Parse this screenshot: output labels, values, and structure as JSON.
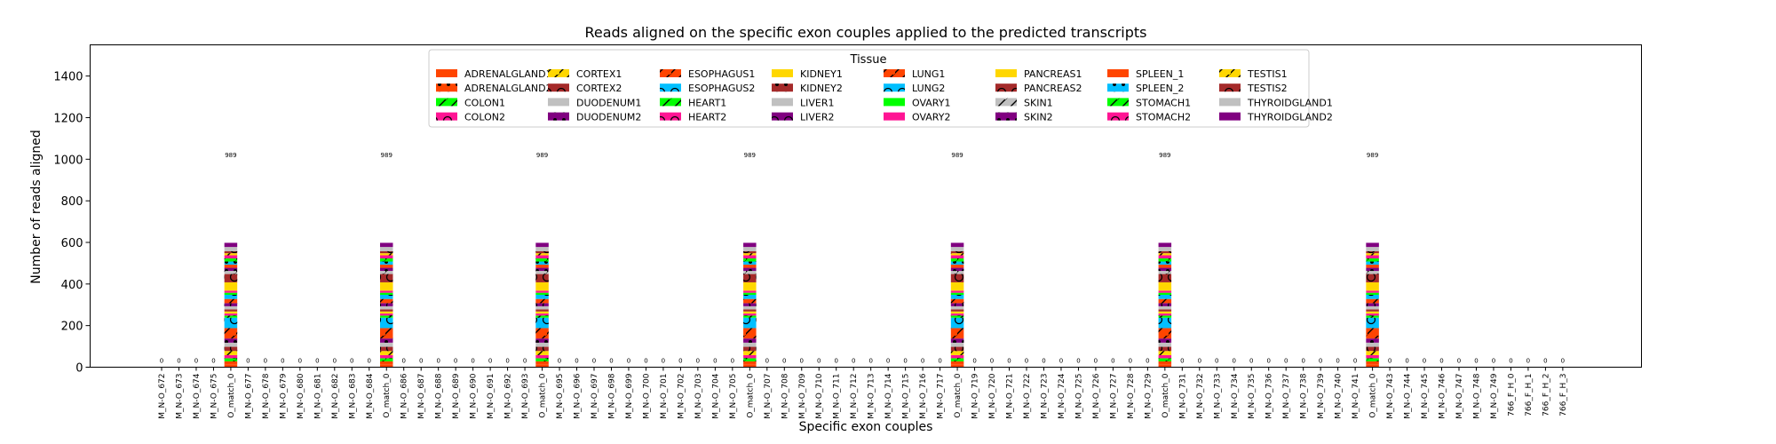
{
  "chart_data": {
    "type": "bar",
    "stacked": true,
    "title": "Reads aligned on the specific exon couples applied to the predicted transcripts",
    "xlabel": "Specific exon couples",
    "ylabel": "Number of reads aligned",
    "ylim": [
      0,
      1550
    ],
    "yticks": [
      0,
      200,
      400,
      600,
      800,
      1000,
      1200,
      1400
    ],
    "grid": false,
    "legend": {
      "title": "Tissue",
      "placement": "top-center",
      "ncol": 8
    },
    "categories": [
      "M_N-O_672",
      "M_N-O_673",
      "M_N-O_674",
      "M_N-O_675",
      "O_match_0",
      "M_N-O_677",
      "M_N-O_678",
      "M_N-O_679",
      "M_N-O_680",
      "M_N-O_681",
      "M_N-O_682",
      "M_N-O_683",
      "M_N-O_684",
      "O_match_0",
      "M_N-O_686",
      "M_N-O_687",
      "M_N-O_688",
      "M_N-O_689",
      "M_N-O_690",
      "M_N-O_691",
      "M_N-O_692",
      "M_N-O_693",
      "O_match_0",
      "M_N-O_695",
      "M_N-O_696",
      "M_N-O_697",
      "M_N-O_698",
      "M_N-O_699",
      "M_N-O_700",
      "M_N-O_701",
      "M_N-O_702",
      "M_N-O_703",
      "M_N-O_704",
      "M_N-O_705",
      "O_match_0",
      "M_N-O_707",
      "M_N-O_708",
      "M_N-O_709",
      "M_N-O_710",
      "M_N-O_711",
      "M_N-O_712",
      "M_N-O_713",
      "M_N-O_714",
      "M_N-O_715",
      "M_N-O_716",
      "M_N-O_717",
      "O_match_0",
      "M_N-O_719",
      "M_N-O_720",
      "M_N-O_721",
      "M_N-O_722",
      "M_N-O_723",
      "M_N-O_724",
      "M_N-O_725",
      "M_N-O_726",
      "M_N-O_727",
      "M_N-O_728",
      "M_N-O_729",
      "O_match_0",
      "M_N-O_731",
      "M_N-O_732",
      "M_N-O_733",
      "M_N-O_734",
      "M_N-O_735",
      "M_N-O_736",
      "M_N-O_737",
      "M_N-O_738",
      "M_N-O_739",
      "M_N-O_740",
      "M_N-O_741",
      "O_match_0",
      "M_N-O_743",
      "M_N-O_744",
      "M_N-O_745",
      "M_N-O_746",
      "M_N-O_747",
      "M_N-O_748",
      "M_N-O_749",
      "766_F_H_0",
      "766_F_H_1",
      "766_F_H_2",
      "766_F_H_3"
    ],
    "match_segment_values": [
      14,
      14,
      15,
      15,
      20,
      20,
      20,
      20,
      50,
      50,
      10,
      10,
      10,
      10,
      15,
      15,
      20,
      20,
      10,
      10,
      40,
      40,
      15,
      15,
      15,
      15,
      15,
      15,
      10,
      10,
      20,
      20,
      40,
      40,
      15,
      15,
      25,
      25,
      20,
      20,
      25,
      25,
      20,
      20,
      25,
      25,
      25,
      25,
      30,
      30,
      25,
      25,
      14,
      14,
      30,
      30,
      14,
      14,
      30,
      30,
      24,
      24,
      40,
      40
    ],
    "totals": [
      0,
      0,
      0,
      0,
      989,
      0,
      0,
      0,
      0,
      0,
      0,
      0,
      0,
      989,
      0,
      0,
      0,
      0,
      0,
      0,
      0,
      0,
      989,
      0,
      0,
      0,
      0,
      0,
      0,
      0,
      0,
      0,
      0,
      0,
      989,
      0,
      0,
      0,
      0,
      0,
      0,
      0,
      0,
      0,
      0,
      0,
      989,
      0,
      0,
      0,
      0,
      0,
      0,
      0,
      0,
      0,
      0,
      0,
      989,
      0,
      0,
      0,
      0,
      0,
      0,
      0,
      0,
      0,
      0,
      0,
      989,
      0,
      0,
      0,
      0,
      0,
      0,
      0,
      0,
      0,
      0,
      0
    ],
    "total_labels": [
      "0",
      "0",
      "0",
      "0",
      "989",
      "0",
      "0",
      "0",
      "0",
      "0",
      "0",
      "0",
      "0",
      "989",
      "0",
      "0",
      "0",
      "0",
      "0",
      "0",
      "0",
      "0",
      "989",
      "0",
      "0",
      "0",
      "0",
      "0",
      "0",
      "0",
      "0",
      "0",
      "0",
      "0",
      "989",
      "0",
      "0",
      "0",
      "0",
      "0",
      "0",
      "0",
      "0",
      "0",
      "0",
      "0",
      "989",
      "0",
      "0",
      "0",
      "0",
      "0",
      "0",
      "0",
      "0",
      "0",
      "0",
      "0",
      "989",
      "0",
      "0",
      "0",
      "0",
      "0",
      "0",
      "0",
      "0",
      "0",
      "0",
      "0",
      "989",
      "0",
      "0",
      "0",
      "0",
      "0",
      "0",
      "0",
      "0",
      "0",
      "0",
      "0"
    ],
    "series": [
      {
        "name": "ADRENALGLAND1",
        "color": "#FF4500",
        "hatch": "none"
      },
      {
        "name": "ADRENALGLAND2",
        "color": "#FF4500",
        "hatch": "dots"
      },
      {
        "name": "COLON1",
        "color": "#00FF00",
        "hatch": "slash"
      },
      {
        "name": "COLON2",
        "color": "#FF1493",
        "hatch": "circles"
      },
      {
        "name": "CORTEX1",
        "color": "#FFD700",
        "hatch": "slash"
      },
      {
        "name": "CORTEX2",
        "color": "#A52A2A",
        "hatch": "circles"
      },
      {
        "name": "DUODENUM1",
        "color": "#C0C0C0",
        "hatch": "none"
      },
      {
        "name": "DUODENUM2",
        "color": "#800080",
        "hatch": "dots"
      },
      {
        "name": "ESOPHAGUS1",
        "color": "#FF4500",
        "hatch": "slash"
      },
      {
        "name": "ESOPHAGUS2",
        "color": "#00BFFF",
        "hatch": "circles"
      },
      {
        "name": "HEART1",
        "color": "#00FF00",
        "hatch": "slash"
      },
      {
        "name": "HEART2",
        "color": "#FF1493",
        "hatch": "circles"
      },
      {
        "name": "KIDNEY1",
        "color": "#FFD700",
        "hatch": "none"
      },
      {
        "name": "KIDNEY2",
        "color": "#A52A2A",
        "hatch": "dots"
      },
      {
        "name": "LIVER1",
        "color": "#C0C0C0",
        "hatch": "none"
      },
      {
        "name": "LIVER2",
        "color": "#800080",
        "hatch": "circles"
      },
      {
        "name": "LUNG1",
        "color": "#FF4500",
        "hatch": "slash"
      },
      {
        "name": "LUNG2",
        "color": "#00BFFF",
        "hatch": "circles"
      },
      {
        "name": "OVARY1",
        "color": "#00FF00",
        "hatch": "none"
      },
      {
        "name": "OVARY2",
        "color": "#FF1493",
        "hatch": "none"
      },
      {
        "name": "PANCREAS1",
        "color": "#FFD700",
        "hatch": "none"
      },
      {
        "name": "PANCREAS2",
        "color": "#A52A2A",
        "hatch": "circles"
      },
      {
        "name": "SKIN1",
        "color": "#C0C0C0",
        "hatch": "slash"
      },
      {
        "name": "SKIN2",
        "color": "#800080",
        "hatch": "dots"
      },
      {
        "name": "SPLEEN_1",
        "color": "#FF4500",
        "hatch": "none"
      },
      {
        "name": "SPLEEN_2",
        "color": "#00BFFF",
        "hatch": "dots"
      },
      {
        "name": "STOMACH1",
        "color": "#00FF00",
        "hatch": "slash"
      },
      {
        "name": "STOMACH2",
        "color": "#FF1493",
        "hatch": "circles"
      },
      {
        "name": "TESTIS1",
        "color": "#FFD700",
        "hatch": "slash"
      },
      {
        "name": "TESTIS2",
        "color": "#A52A2A",
        "hatch": "circles"
      },
      {
        "name": "THYROIDGLAND1",
        "color": "#C0C0C0",
        "hatch": "none"
      },
      {
        "name": "THYROIDGLAND2",
        "color": "#800080",
        "hatch": "none"
      }
    ]
  }
}
